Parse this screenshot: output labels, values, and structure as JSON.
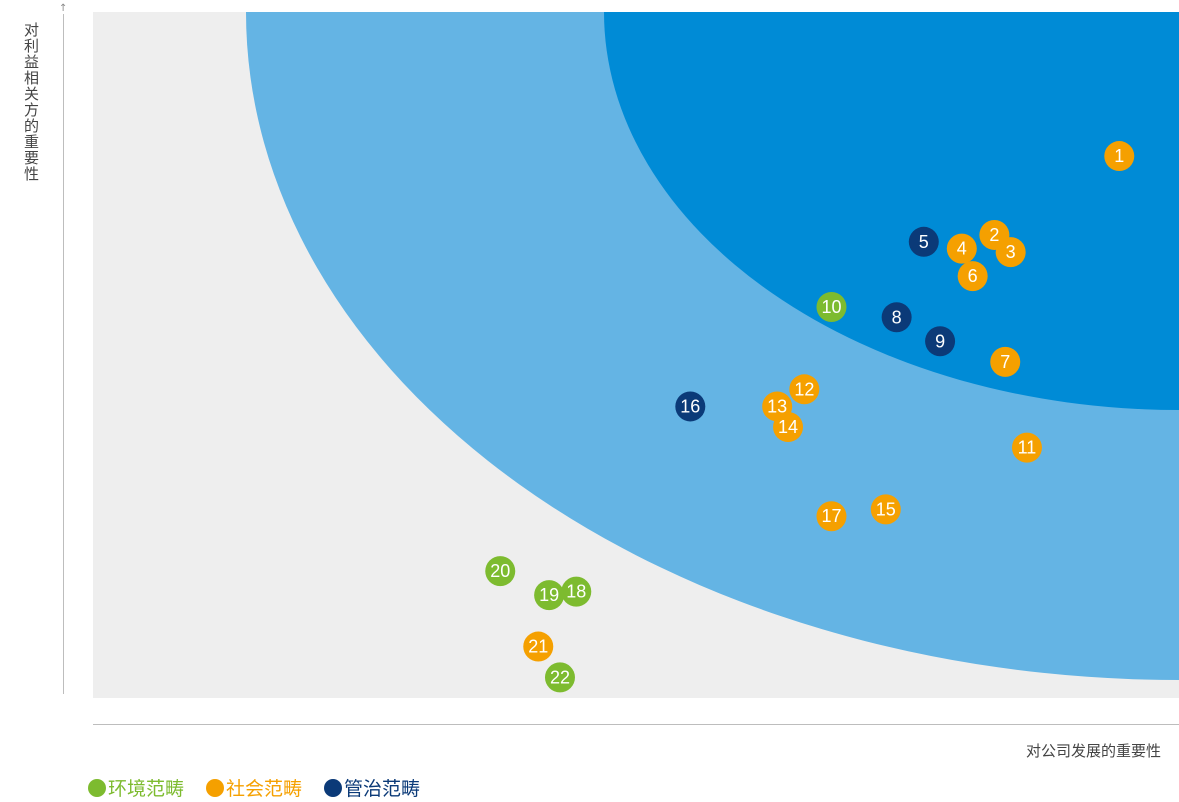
{
  "chart_data": {
    "type": "scatter",
    "ylabel": "对利益相关方的重要性",
    "xlabel": "对公司发展的重要性",
    "zones": {
      "background": "#eeeeee",
      "outer": "#64b4e4",
      "inner": "#008bd6"
    },
    "categories": [
      {
        "name": "环境范畴",
        "color": "#7dbb2f"
      },
      {
        "name": "社会范畴",
        "color": "#f5a000"
      },
      {
        "name": "管治范畴",
        "color": "#0b3a78"
      }
    ],
    "points": [
      {
        "label": "1",
        "category": 1,
        "x": 9.45,
        "y": 7.9
      },
      {
        "label": "2",
        "category": 1,
        "x": 8.3,
        "y": 6.75
      },
      {
        "label": "3",
        "category": 1,
        "x": 8.45,
        "y": 6.5
      },
      {
        "label": "4",
        "category": 1,
        "x": 8.0,
        "y": 6.55
      },
      {
        "label": "5",
        "category": 2,
        "x": 7.65,
        "y": 6.65
      },
      {
        "label": "6",
        "category": 1,
        "x": 8.1,
        "y": 6.15
      },
      {
        "label": "7",
        "category": 1,
        "x": 8.4,
        "y": 4.9
      },
      {
        "label": "8",
        "category": 2,
        "x": 7.4,
        "y": 5.55
      },
      {
        "label": "9",
        "category": 2,
        "x": 7.8,
        "y": 5.2
      },
      {
        "label": "10",
        "category": 0,
        "x": 6.8,
        "y": 5.7
      },
      {
        "label": "11",
        "category": 1,
        "x": 8.6,
        "y": 3.65
      },
      {
        "label": "12",
        "category": 1,
        "x": 6.55,
        "y": 4.5
      },
      {
        "label": "13",
        "category": 1,
        "x": 6.3,
        "y": 4.25
      },
      {
        "label": "14",
        "category": 1,
        "x": 6.4,
        "y": 3.95
      },
      {
        "label": "15",
        "category": 1,
        "x": 7.3,
        "y": 2.75
      },
      {
        "label": "16",
        "category": 2,
        "x": 5.5,
        "y": 4.25
      },
      {
        "label": "17",
        "category": 1,
        "x": 6.8,
        "y": 2.65
      },
      {
        "label": "18",
        "category": 0,
        "x": 4.45,
        "y": 1.55
      },
      {
        "label": "19",
        "category": 0,
        "x": 4.2,
        "y": 1.5
      },
      {
        "label": "20",
        "category": 0,
        "x": 3.75,
        "y": 1.85
      },
      {
        "label": "21",
        "category": 1,
        "x": 4.1,
        "y": 0.75
      },
      {
        "label": "22",
        "category": 0,
        "x": 4.3,
        "y": 0.3
      }
    ]
  }
}
